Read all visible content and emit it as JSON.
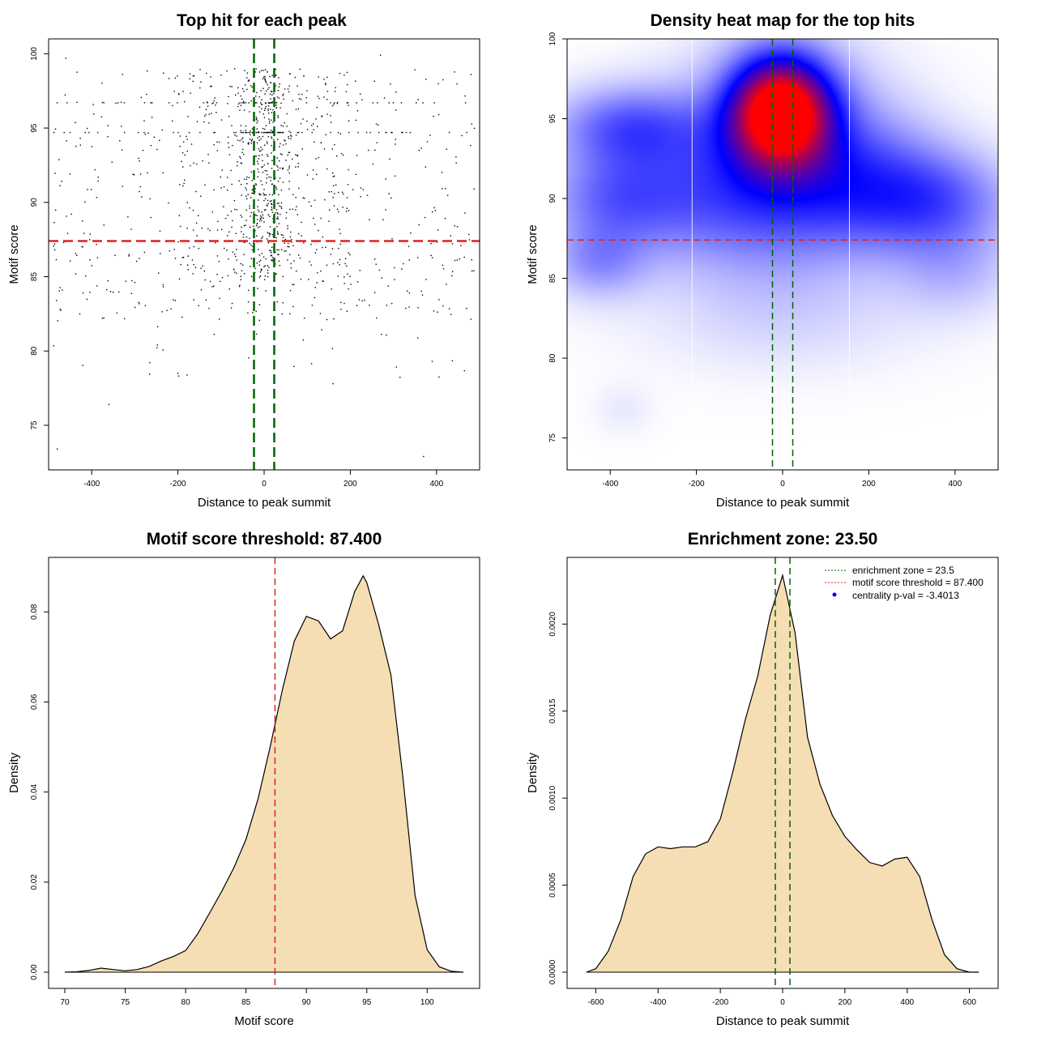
{
  "figure": {
    "colors": {
      "hit_dot": "#000000",
      "threshold": "#dd2222",
      "zone": "#006400",
      "fill": "#f5deb3",
      "heat_low": "#ffffff",
      "heat_mid": "#0000ff",
      "heat_high": "#ff0000"
    }
  },
  "chart_data": [
    {
      "id": "scatter",
      "type": "scatter",
      "title": "Top hit for each peak",
      "xlabel": "Distance to peak summit",
      "ylabel": "Motif score",
      "xlim": [
        -500,
        500
      ],
      "ylim": [
        72,
        101
      ],
      "x_ticks": [
        -400,
        -200,
        0,
        200,
        400
      ],
      "y_ticks": [
        75,
        80,
        85,
        90,
        95,
        100
      ],
      "hline": 87.4,
      "vlines": [
        -23.5,
        23.5
      ],
      "n_points": 1300,
      "points_note": "approx. 1300 points, dense near x=0 and score 92-98",
      "highlight_points": [
        {
          "x": -480,
          "y": 73.4
        },
        {
          "x": 370,
          "y": 72.9
        },
        {
          "x": -360,
          "y": 76.4
        },
        {
          "x": 160,
          "y": 77.8
        },
        {
          "x": -200,
          "y": 78.5
        },
        {
          "x": 390,
          "y": 79.3
        },
        {
          "x": 270,
          "y": 99.9
        },
        {
          "x": -460,
          "y": 99.7
        },
        {
          "x": 480,
          "y": 98.6
        }
      ]
    },
    {
      "id": "heatmap",
      "type": "heatmap",
      "title": "Density heat map for the top hits",
      "xlabel": "Distance to peak summit",
      "ylabel": "Motif score",
      "xlim": [
        -500,
        500
      ],
      "ylim": [
        73,
        100
      ],
      "x_ticks": [
        -400,
        -200,
        0,
        200,
        400
      ],
      "y_ticks": [
        75,
        80,
        85,
        90,
        95,
        100
      ],
      "hline": 87.4,
      "vlines": [
        -23.5,
        23.5
      ],
      "white_lines_x": [
        -210,
        155
      ],
      "blobs": [
        {
          "x": -5,
          "y": 95.5,
          "sx": 80,
          "sy": 2.3,
          "w": 1.0
        },
        {
          "x": 0,
          "y": 92.5,
          "sx": 160,
          "sy": 4.8,
          "w": 0.32
        },
        {
          "x": -360,
          "y": 94.5,
          "sx": 120,
          "sy": 1.8,
          "w": 0.3
        },
        {
          "x": -400,
          "y": 90.0,
          "sx": 110,
          "sy": 2.0,
          "w": 0.2
        },
        {
          "x": 360,
          "y": 89.8,
          "sx": 130,
          "sy": 2.2,
          "w": 0.26
        },
        {
          "x": 200,
          "y": 91.0,
          "sx": 140,
          "sy": 3.0,
          "w": 0.22
        },
        {
          "x": -220,
          "y": 90.0,
          "sx": 170,
          "sy": 3.0,
          "w": 0.2
        },
        {
          "x": -430,
          "y": 86.0,
          "sx": 80,
          "sy": 1.6,
          "w": 0.18
        },
        {
          "x": 400,
          "y": 85.5,
          "sx": 100,
          "sy": 2.0,
          "w": 0.12
        },
        {
          "x": 0,
          "y": 82.5,
          "sx": 250,
          "sy": 2.5,
          "w": 0.06
        },
        {
          "x": -370,
          "y": 76.8,
          "sx": 50,
          "sy": 1.2,
          "w": 0.04
        }
      ]
    },
    {
      "id": "score-density",
      "type": "area",
      "title": "Motif score threshold: 87.400",
      "xlabel": "Motif score",
      "ylabel": "Density",
      "xlim": [
        70,
        103
      ],
      "ylim": [
        0,
        0.09
      ],
      "x_ticks": [
        70,
        75,
        80,
        85,
        90,
        95,
        100
      ],
      "y_ticks": [
        0.0,
        0.02,
        0.04,
        0.06,
        0.08
      ],
      "y_tick_labels": [
        "0.00",
        "0.02",
        "0.04",
        "0.06",
        "0.08"
      ],
      "vline": 87.4,
      "x": [
        70,
        71,
        72,
        73,
        74,
        75,
        76,
        77,
        78,
        79,
        80,
        81,
        82,
        83,
        84,
        85,
        86,
        87,
        88,
        89,
        90,
        91,
        92,
        93,
        94,
        94.7,
        95,
        96,
        97,
        98,
        99,
        100,
        101,
        102,
        103
      ],
      "values": [
        0.0,
        0.0001,
        0.0004,
        0.0009,
        0.0006,
        0.0003,
        0.0006,
        0.0013,
        0.0025,
        0.0035,
        0.0048,
        0.0085,
        0.0132,
        0.018,
        0.0232,
        0.0295,
        0.0385,
        0.05,
        0.0625,
        0.0735,
        0.079,
        0.078,
        0.074,
        0.0758,
        0.0845,
        0.088,
        0.0865,
        0.077,
        0.066,
        0.043,
        0.017,
        0.005,
        0.0012,
        0.0002,
        0.0
      ]
    },
    {
      "id": "distance-density",
      "type": "area",
      "title": "Enrichment zone: 23.50",
      "xlabel": "Distance to peak summit",
      "ylabel": "Density",
      "xlim": [
        -640,
        640
      ],
      "ylim": [
        0,
        0.0023
      ],
      "x_ticks": [
        -600,
        -400,
        -200,
        0,
        200,
        400,
        600
      ],
      "y_ticks": [
        0.0,
        0.0005,
        0.001,
        0.0015,
        0.002
      ],
      "y_tick_labels": [
        "0.0000",
        "0.0005",
        "0.0010",
        "0.0015",
        "0.0020"
      ],
      "vlines": [
        -23.5,
        23.5
      ],
      "x": [
        -630,
        -600,
        -560,
        -520,
        -480,
        -440,
        -400,
        -360,
        -320,
        -280,
        -240,
        -200,
        -160,
        -120,
        -80,
        -40,
        0,
        40,
        80,
        120,
        160,
        200,
        240,
        280,
        320,
        360,
        400,
        440,
        480,
        520,
        560,
        600,
        630
      ],
      "values": [
        0.0,
        2e-05,
        0.00012,
        0.0003,
        0.00055,
        0.00068,
        0.00072,
        0.00071,
        0.00072,
        0.00072,
        0.00075,
        0.00088,
        0.00115,
        0.00145,
        0.0017,
        0.00205,
        0.00228,
        0.00195,
        0.00135,
        0.00108,
        0.0009,
        0.00078,
        0.0007,
        0.00063,
        0.00061,
        0.00065,
        0.00066,
        0.00055,
        0.0003,
        0.0001,
        2e-05,
        0.0,
        0.0
      ],
      "legend": [
        {
          "label": "enrichment zone = 23.5",
          "kind": "dotted-line",
          "color": "#006400"
        },
        {
          "label": "motif score threshold = 87.400",
          "kind": "dotted-line",
          "color": "#dd2222"
        },
        {
          "label": "centrality p-val = -3.4013",
          "kind": "dot",
          "color": "#0000ff"
        }
      ]
    }
  ]
}
